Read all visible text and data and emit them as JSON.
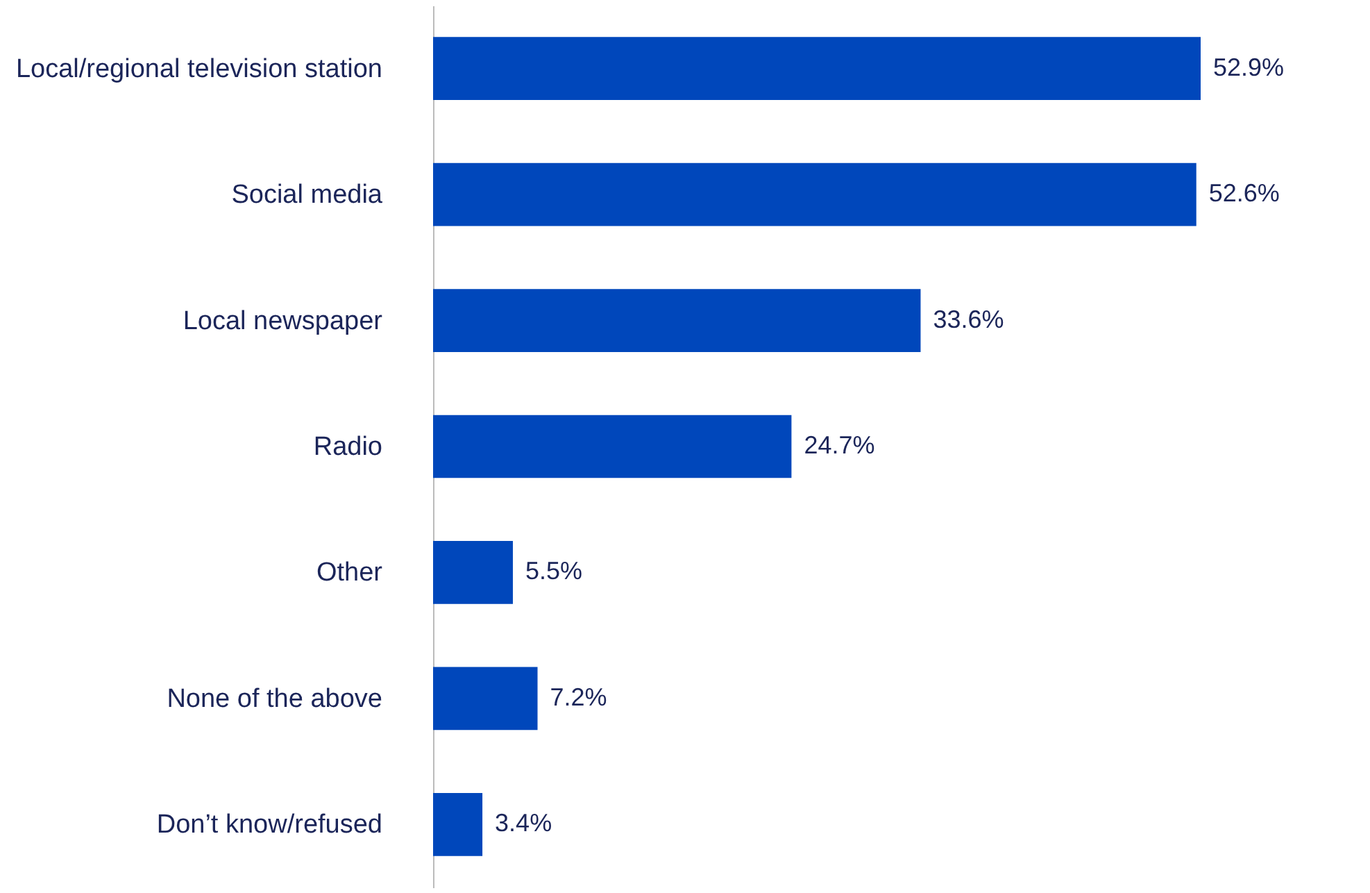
{
  "chart_data": {
    "type": "bar",
    "orientation": "horizontal",
    "data_labels": true,
    "categories": [
      "Local/regional television station",
      "Social media",
      "Local newspaper",
      "Radio",
      "Other",
      "None of the above",
      "Don’t know/refused"
    ],
    "values": [
      52.9,
      52.6,
      33.6,
      24.7,
      5.5,
      7.2,
      3.4
    ],
    "value_labels": [
      "52.9%",
      "52.6%",
      "33.6%",
      "24.7%",
      "5.5%",
      "7.2%",
      "3.4%"
    ],
    "color": "#0047bb"
  }
}
